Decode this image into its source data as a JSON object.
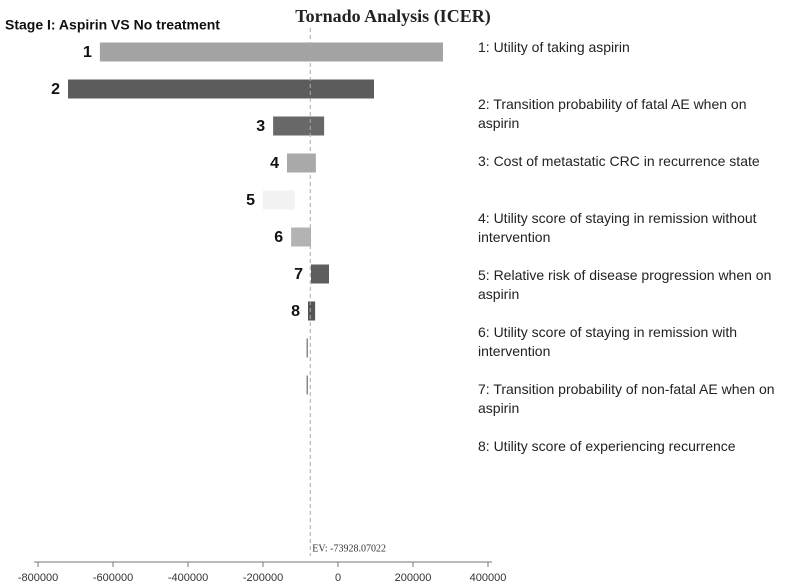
{
  "chart_data": {
    "type": "tornado",
    "title": "Tornado Analysis (ICER)",
    "subtitle": "Stage I: Aspirin VS No treatment",
    "categories": [
      "1",
      "2",
      "3",
      "4",
      "5",
      "6",
      "7",
      "8",
      null,
      null
    ],
    "low": [
      -635000,
      -720000,
      -173000,
      -136000,
      -200000,
      -125000,
      -72000,
      -80000,
      -84000,
      -84000
    ],
    "high": [
      280000,
      96000,
      -37000,
      -59000,
      -115000,
      -72000,
      -24000,
      -61000,
      -80000,
      -80000
    ],
    "colors": [
      "#a3a3a3",
      "#5c5c5c",
      "#686868",
      "#a9a9a9",
      "#f2f2f2",
      "#b3b3b3",
      "#5e5e5e",
      "#555555",
      "#8a8a8a",
      "#8a8a8a"
    ],
    "legend_items": [
      "1: Utility of taking aspirin",
      "2: Transition probability of fatal AE when on aspirin",
      "3: Cost of metastatic CRC in recurrence state",
      "4: Utility score of staying in remission without intervention",
      "5: Relative risk of disease progression when on aspirin",
      "6: Utility score of staying in remission with intervention",
      "7: Transition probability of non-fatal AE when on aspirin",
      "8: Utility score of experiencing recurrence"
    ],
    "ev": -73928.07022,
    "ev_label": "EV: -73928.07022",
    "xlim": [
      -800000,
      400000
    ],
    "xticks": [
      -800000,
      -600000,
      -400000,
      -200000,
      0,
      200000,
      400000
    ]
  }
}
